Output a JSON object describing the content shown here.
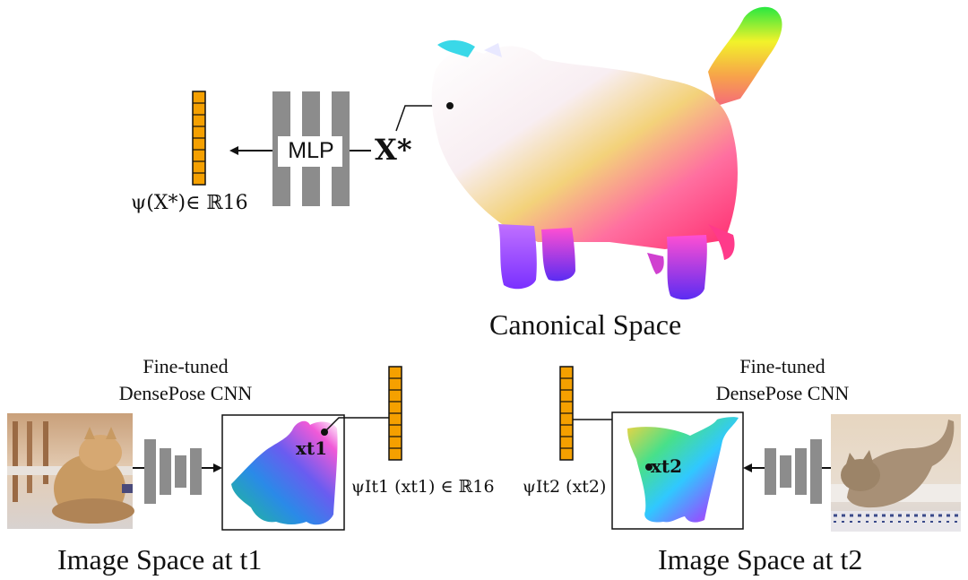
{
  "canonical": {
    "title": "Canonical Space",
    "point_label": "X*",
    "mlp_label": "MLP",
    "embedding_label": "ψ(X*)∈ ℝ16"
  },
  "left": {
    "caption": "Image Space at t1",
    "cnn_line1": "Fine-tuned",
    "cnn_line2": "DensePose CNN",
    "point_label": "xt1",
    "embedding_label": "ψIt1 (xt1) ∈ ℝ16"
  },
  "right": {
    "caption": "Image Space at t2",
    "cnn_line1": "Fine-tuned",
    "cnn_line2": "DensePose CNN",
    "point_label": "xt2",
    "embedding_label": "ψIt2 (xt2)"
  },
  "colors": {
    "embedding_fill": "#f5a000",
    "layer_gray": "#8c8c8c",
    "line": "#111111"
  },
  "icons": [
    "cat-photo-left",
    "cat-photo-right",
    "cat-mesh",
    "arrow-icon"
  ]
}
